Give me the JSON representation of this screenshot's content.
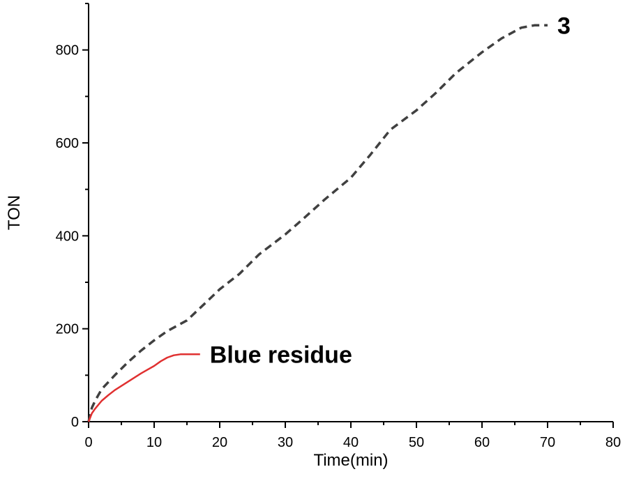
{
  "chart_data": {
    "type": "line",
    "title": "",
    "xlabel": "Time(min)",
    "ylabel": "TON",
    "xlim": [
      0,
      80
    ],
    "ylim": [
      0,
      900
    ],
    "x_ticks": [
      0,
      10,
      20,
      30,
      40,
      50,
      60,
      70,
      80
    ],
    "y_ticks": [
      0,
      200,
      400,
      600,
      800
    ],
    "grid": false,
    "legend": "none",
    "series": [
      {
        "name": "3",
        "color": "#404040",
        "style": "dashed",
        "x": [
          0,
          0.5,
          1,
          2,
          4,
          6,
          8,
          10,
          12,
          15,
          18,
          20,
          23,
          26,
          30,
          33,
          36,
          40,
          43,
          46,
          50,
          53,
          56,
          60,
          63,
          66,
          68,
          70
        ],
        "y": [
          0,
          30,
          45,
          70,
          100,
          128,
          153,
          175,
          195,
          218,
          258,
          285,
          318,
          360,
          403,
          440,
          478,
          525,
          575,
          628,
          670,
          708,
          750,
          795,
          825,
          848,
          853,
          853
        ]
      },
      {
        "name": "Blue residue",
        "color": "#e03030",
        "style": "solid",
        "x": [
          0,
          0.5,
          1,
          2,
          3,
          4,
          5,
          6,
          7,
          8,
          9,
          10,
          11,
          12,
          13,
          14,
          15,
          16,
          17
        ],
        "y": [
          0,
          18,
          28,
          45,
          57,
          68,
          77,
          86,
          95,
          104,
          112,
          120,
          130,
          138,
          143,
          145,
          145,
          145,
          145
        ]
      }
    ]
  }
}
